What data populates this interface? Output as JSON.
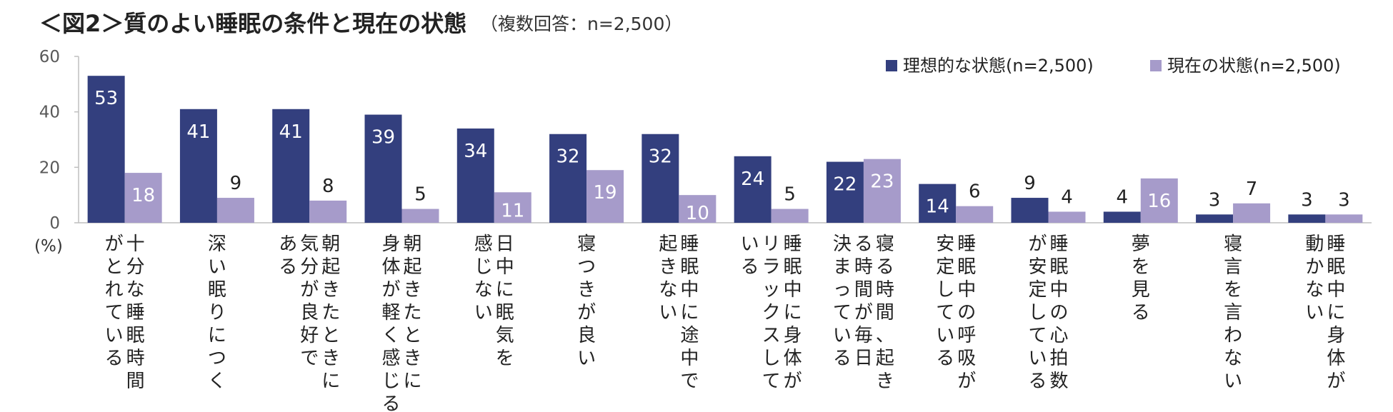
{
  "chart_data": {
    "type": "bar",
    "title": "＜図2＞質のよい睡眠の条件と現在の状態",
    "subtitle": "（複数回答：n=2,500）",
    "y_unit": "(%)",
    "ylim": [
      0,
      60
    ],
    "yticks": [
      0,
      20,
      40,
      60
    ],
    "grid": false,
    "legend_position": "top-right",
    "categories": [
      [
        "十分な睡眠時間",
        "がとれている"
      ],
      [
        "深い眠りにつく"
      ],
      [
        "朝起きたときに",
        "気分が良好で",
        "ある"
      ],
      [
        "朝起きたときに",
        "身体が軽く感じる"
      ],
      [
        "日中に眠気を",
        "感じない"
      ],
      [
        "寝つきが良い"
      ],
      [
        "睡眠中に途中で",
        "起きない"
      ],
      [
        "睡眠中に身体が",
        "リラックスして",
        "いる"
      ],
      [
        "寝る時間、起き",
        "る時間が毎日",
        "決まっている"
      ],
      [
        "睡眠中の呼吸が",
        "安定している"
      ],
      [
        "睡眠中の心拍数",
        "が安定している"
      ],
      [
        "夢を見る"
      ],
      [
        "寝言を言わない"
      ],
      [
        "睡眠中に身体が",
        "動かない"
      ]
    ],
    "series": [
      {
        "name": "理想的な状態(n=2,500)",
        "color": "#333f7e",
        "values": [
          53,
          41,
          41,
          39,
          34,
          32,
          32,
          24,
          22,
          14,
          9,
          4,
          3,
          3
        ]
      },
      {
        "name": "現在の状態(n=2,500)",
        "color": "#a69bca",
        "values": [
          18,
          9,
          8,
          5,
          11,
          19,
          10,
          5,
          23,
          6,
          4,
          16,
          7,
          3
        ]
      }
    ]
  }
}
